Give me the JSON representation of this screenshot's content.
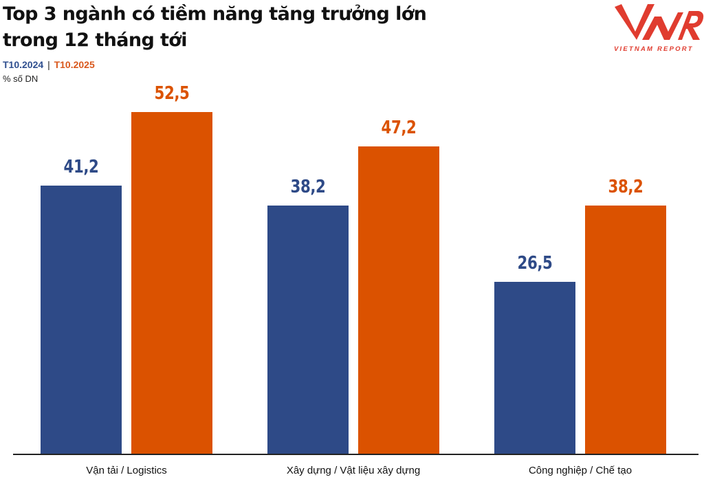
{
  "header": {
    "title_line1": "Top 3 ngành có tiềm năng tăng trưởng lớn",
    "title_line2": "trong 12 tháng tới",
    "legend": {
      "series1": "T10.2024",
      "separator": "|",
      "series2": "T10.2025"
    },
    "unit": "% số DN"
  },
  "logo": {
    "mark": "VNR",
    "text": "VIETNAM REPORT",
    "color": "#e03c2f"
  },
  "colors": {
    "series1": "#2e4a87",
    "series2": "#db5200",
    "axis": "#222222"
  },
  "labels": {
    "g0": {
      "cat": "Vận tải / Logistics",
      "v1": "41,2",
      "v2": "52,5"
    },
    "g1": {
      "cat": "Xây dựng / Vật liệu xây dựng",
      "v1": "38,2",
      "v2": "47,2"
    },
    "g2": {
      "cat": "Công nghiệp / Chế tạo",
      "v1": "26,5",
      "v2": "38,2"
    }
  },
  "chart_data": {
    "type": "bar",
    "title": "Top 3 ngành có tiềm năng tăng trưởng lớn trong 12 tháng tới",
    "subtitle": "T10.2024 | T10.2025",
    "ylabel": "% số DN",
    "xlabel": "",
    "categories": [
      "Vận tải / Logistics",
      "Xây dựng / Vật liệu xây dựng",
      "Công nghiệp / Chế tạo"
    ],
    "series": [
      {
        "name": "T10.2024",
        "color": "#2e4a87",
        "values": [
          41.2,
          38.2,
          26.5
        ]
      },
      {
        "name": "T10.2025",
        "color": "#db5200",
        "values": [
          52.5,
          47.2,
          38.2
        ]
      }
    ],
    "data_labels": true,
    "grid": false,
    "legend_position": "top-left (inline in subtitle)",
    "ylim": [
      0,
      55
    ]
  }
}
